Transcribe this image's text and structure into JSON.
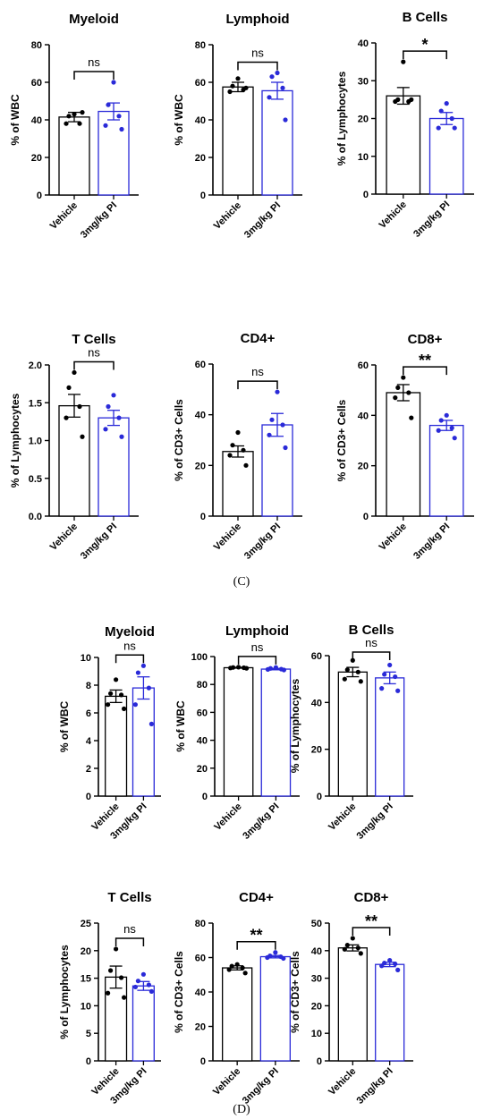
{
  "figure_labels": {
    "C": "(C)",
    "D": "(D)"
  },
  "chart_data": [
    {
      "type": "bar",
      "title": "Myeloid",
      "ylabel": "% of WBC",
      "ylim": [
        0,
        80
      ],
      "yticks": [
        0,
        20,
        40,
        60,
        80
      ],
      "categories": [
        "Vehicle",
        "3mg/kg PI"
      ],
      "colors": [
        "#000000",
        "#2a2ad8"
      ],
      "values": [
        41.5,
        44.5
      ],
      "errors": [
        2.5,
        4.5
      ],
      "points": [
        [
          43,
          42,
          38,
          38,
          44
        ],
        [
          60,
          48,
          42,
          37,
          35
        ]
      ],
      "significance": "ns"
    },
    {
      "type": "bar",
      "title": "Lymphoid",
      "ylabel": "% of WBC",
      "ylim": [
        0,
        80
      ],
      "yticks": [
        0,
        20,
        40,
        60,
        80
      ],
      "categories": [
        "Vehicle",
        "3mg/kg PI"
      ],
      "colors": [
        "#000000",
        "#2a2ad8"
      ],
      "values": [
        57.5,
        55.5
      ],
      "errors": [
        2.5,
        4.5
      ],
      "points": [
        [
          62,
          58,
          56,
          55,
          57
        ],
        [
          65,
          63,
          57,
          52,
          40
        ]
      ],
      "significance": "ns"
    },
    {
      "type": "bar",
      "title": "B Cells",
      "ylabel": "% of  Lymphocytes",
      "ylim": [
        0,
        40
      ],
      "yticks": [
        0,
        10,
        20,
        30,
        40
      ],
      "categories": [
        "Vehicle",
        "3mg/kg PI"
      ],
      "colors": [
        "#000000",
        "#2a2ad8"
      ],
      "values": [
        26,
        20
      ],
      "errors": [
        2.2,
        1.6
      ],
      "points": [
        [
          35,
          25,
          24.5,
          24.5,
          25
        ],
        [
          24,
          22,
          20,
          17.5,
          17.5
        ]
      ],
      "significance": "*"
    },
    {
      "type": "bar",
      "title": "T Cells",
      "ylabel": "% of  Lymphocytes",
      "ylim": [
        0,
        2.0
      ],
      "yticks": [
        0.0,
        0.5,
        1.0,
        1.5,
        2.0
      ],
      "categories": [
        "Vehicle",
        "3mg/kg PI"
      ],
      "colors": [
        "#000000",
        "#2a2ad8"
      ],
      "values": [
        1.46,
        1.3
      ],
      "errors": [
        0.15,
        0.1
      ],
      "points": [
        [
          1.9,
          1.7,
          1.45,
          1.3,
          1.05
        ],
        [
          1.6,
          1.45,
          1.3,
          1.15,
          1.05
        ]
      ],
      "significance": "ns"
    },
    {
      "type": "bar",
      "title": "CD4+",
      "ylabel": "% of  CD3+ Cells",
      "ylim": [
        0,
        60
      ],
      "yticks": [
        0,
        20,
        40,
        60
      ],
      "categories": [
        "Vehicle",
        "3mg/kg PI"
      ],
      "colors": [
        "#000000",
        "#2a2ad8"
      ],
      "values": [
        25.5,
        36
      ],
      "errors": [
        2.2,
        4.5
      ],
      "points": [
        [
          33,
          28,
          26,
          24,
          20
        ],
        [
          49,
          38,
          36,
          32,
          27
        ]
      ],
      "significance": "ns"
    },
    {
      "type": "bar",
      "title": "CD8+",
      "ylabel": "% of CD3+ Cells",
      "ylim": [
        0,
        60
      ],
      "yticks": [
        0,
        20,
        40,
        60
      ],
      "categories": [
        "Vehicle",
        "3mg/kg PI"
      ],
      "colors": [
        "#000000",
        "#2a2ad8"
      ],
      "values": [
        49,
        36
      ],
      "errors": [
        3.2,
        2
      ],
      "points": [
        [
          55,
          51,
          49,
          47,
          39
        ],
        [
          40,
          38,
          35,
          34,
          31
        ]
      ],
      "significance": "**"
    },
    {
      "type": "bar",
      "title": "Myeloid",
      "ylabel": "% of WBC",
      "ylim": [
        0,
        10
      ],
      "yticks": [
        0,
        2,
        4,
        6,
        8,
        10
      ],
      "categories": [
        "Vehicle",
        "3mg/kg PI"
      ],
      "colors": [
        "#000000",
        "#2a2ad8"
      ],
      "values": [
        7.2,
        7.8
      ],
      "errors": [
        0.45,
        0.8
      ],
      "points": [
        [
          8.4,
          7.4,
          7.3,
          6.6,
          6.3
        ],
        [
          9.4,
          8.9,
          7.8,
          6.6,
          5.2
        ]
      ],
      "significance": "ns"
    },
    {
      "type": "bar",
      "title": "Lymphoid",
      "ylabel": "% of WBC",
      "ylim": [
        0,
        100
      ],
      "yticks": [
        0,
        20,
        40,
        60,
        80,
        100
      ],
      "categories": [
        "Vehicle",
        "3mg/kg PI"
      ],
      "colors": [
        "#000000",
        "#2a2ad8"
      ],
      "values": [
        92,
        91
      ],
      "errors": [
        0.3,
        0.5
      ],
      "points": [
        [
          92.4,
          92.2,
          92,
          91.8,
          91.6
        ],
        [
          92.2,
          91.5,
          91,
          90.8,
          90.4
        ]
      ],
      "significance": "ns"
    },
    {
      "type": "bar",
      "title": "B Cells",
      "ylabel": "% of  Lymphocytes",
      "ylim": [
        0,
        60
      ],
      "yticks": [
        0,
        20,
        40,
        60
      ],
      "categories": [
        "Vehicle",
        "3mg/kg PI"
      ],
      "colors": [
        "#000000",
        "#2a2ad8"
      ],
      "values": [
        53,
        50.5
      ],
      "errors": [
        2,
        2.5
      ],
      "points": [
        [
          58,
          54,
          53,
          50,
          49
        ],
        [
          56,
          52,
          51,
          46,
          45
        ]
      ],
      "significance": "ns"
    },
    {
      "type": "bar",
      "title": "T Cells",
      "ylabel": "% of  Lymphocytes",
      "ylim": [
        0,
        25
      ],
      "yticks": [
        0,
        5,
        10,
        15,
        20,
        25
      ],
      "categories": [
        "Vehicle",
        "3mg/kg PI"
      ],
      "colors": [
        "#000000",
        "#2a2ad8"
      ],
      "values": [
        15.2,
        13.6
      ],
      "errors": [
        2,
        0.8
      ],
      "points": [
        [
          20.3,
          16.4,
          15.1,
          12.3,
          11.5
        ],
        [
          15.7,
          14.5,
          13.8,
          13.4,
          12.6
        ]
      ],
      "significance": "ns"
    },
    {
      "type": "bar",
      "title": "CD4+",
      "ylabel": "% of  CD3+ Cells",
      "ylim": [
        0,
        80
      ],
      "yticks": [
        0,
        20,
        40,
        60,
        80
      ],
      "categories": [
        "Vehicle",
        "3mg/kg PI"
      ],
      "colors": [
        "#000000",
        "#2a2ad8"
      ],
      "values": [
        54,
        60.5
      ],
      "errors": [
        1.2,
        0.7
      ],
      "points": [
        [
          56,
          55,
          54,
          53,
          51
        ],
        [
          63,
          61,
          60.5,
          60,
          59.5
        ]
      ],
      "significance": "**"
    },
    {
      "type": "bar",
      "title": "CD8+",
      "ylabel": "% of CD3+ Cells",
      "ylim": [
        0,
        50
      ],
      "yticks": [
        0,
        10,
        20,
        30,
        40,
        50
      ],
      "categories": [
        "Vehicle",
        "3mg/kg PI"
      ],
      "colors": [
        "#000000",
        "#2a2ad8"
      ],
      "values": [
        41,
        35
      ],
      "errors": [
        1.1,
        0.8
      ],
      "points": [
        [
          44.5,
          42,
          41,
          40.5,
          39
        ],
        [
          36.5,
          35.5,
          35.2,
          34.5,
          33
        ]
      ],
      "significance": "**"
    }
  ]
}
